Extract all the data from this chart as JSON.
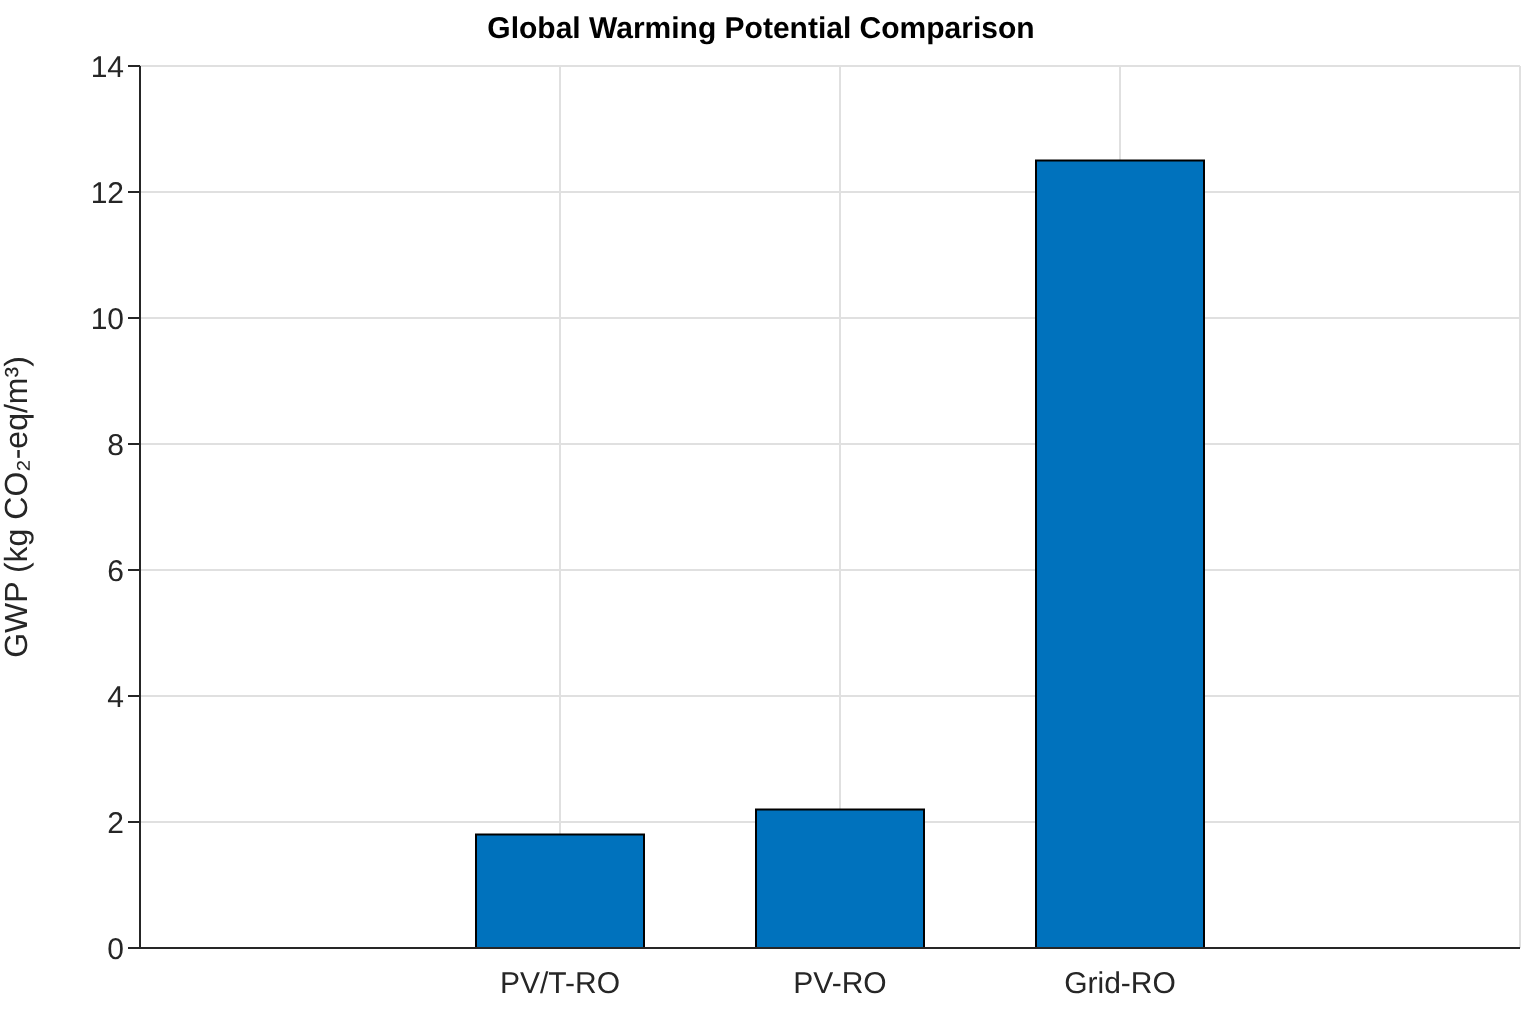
{
  "chart_data": {
    "type": "bar",
    "title": "Global Warming Potential Comparison",
    "ylabel": "GWP (kg CO₂-eq/m³)",
    "categories": [
      "PV/T-RO",
      "PV-RO",
      "Grid-RO"
    ],
    "values": [
      1.8,
      2.2,
      12.5
    ],
    "color": "#0072bd",
    "ylim": [
      0,
      14
    ],
    "yticks": [
      0,
      2,
      4,
      6,
      8,
      10,
      12,
      14
    ],
    "grid": true
  }
}
